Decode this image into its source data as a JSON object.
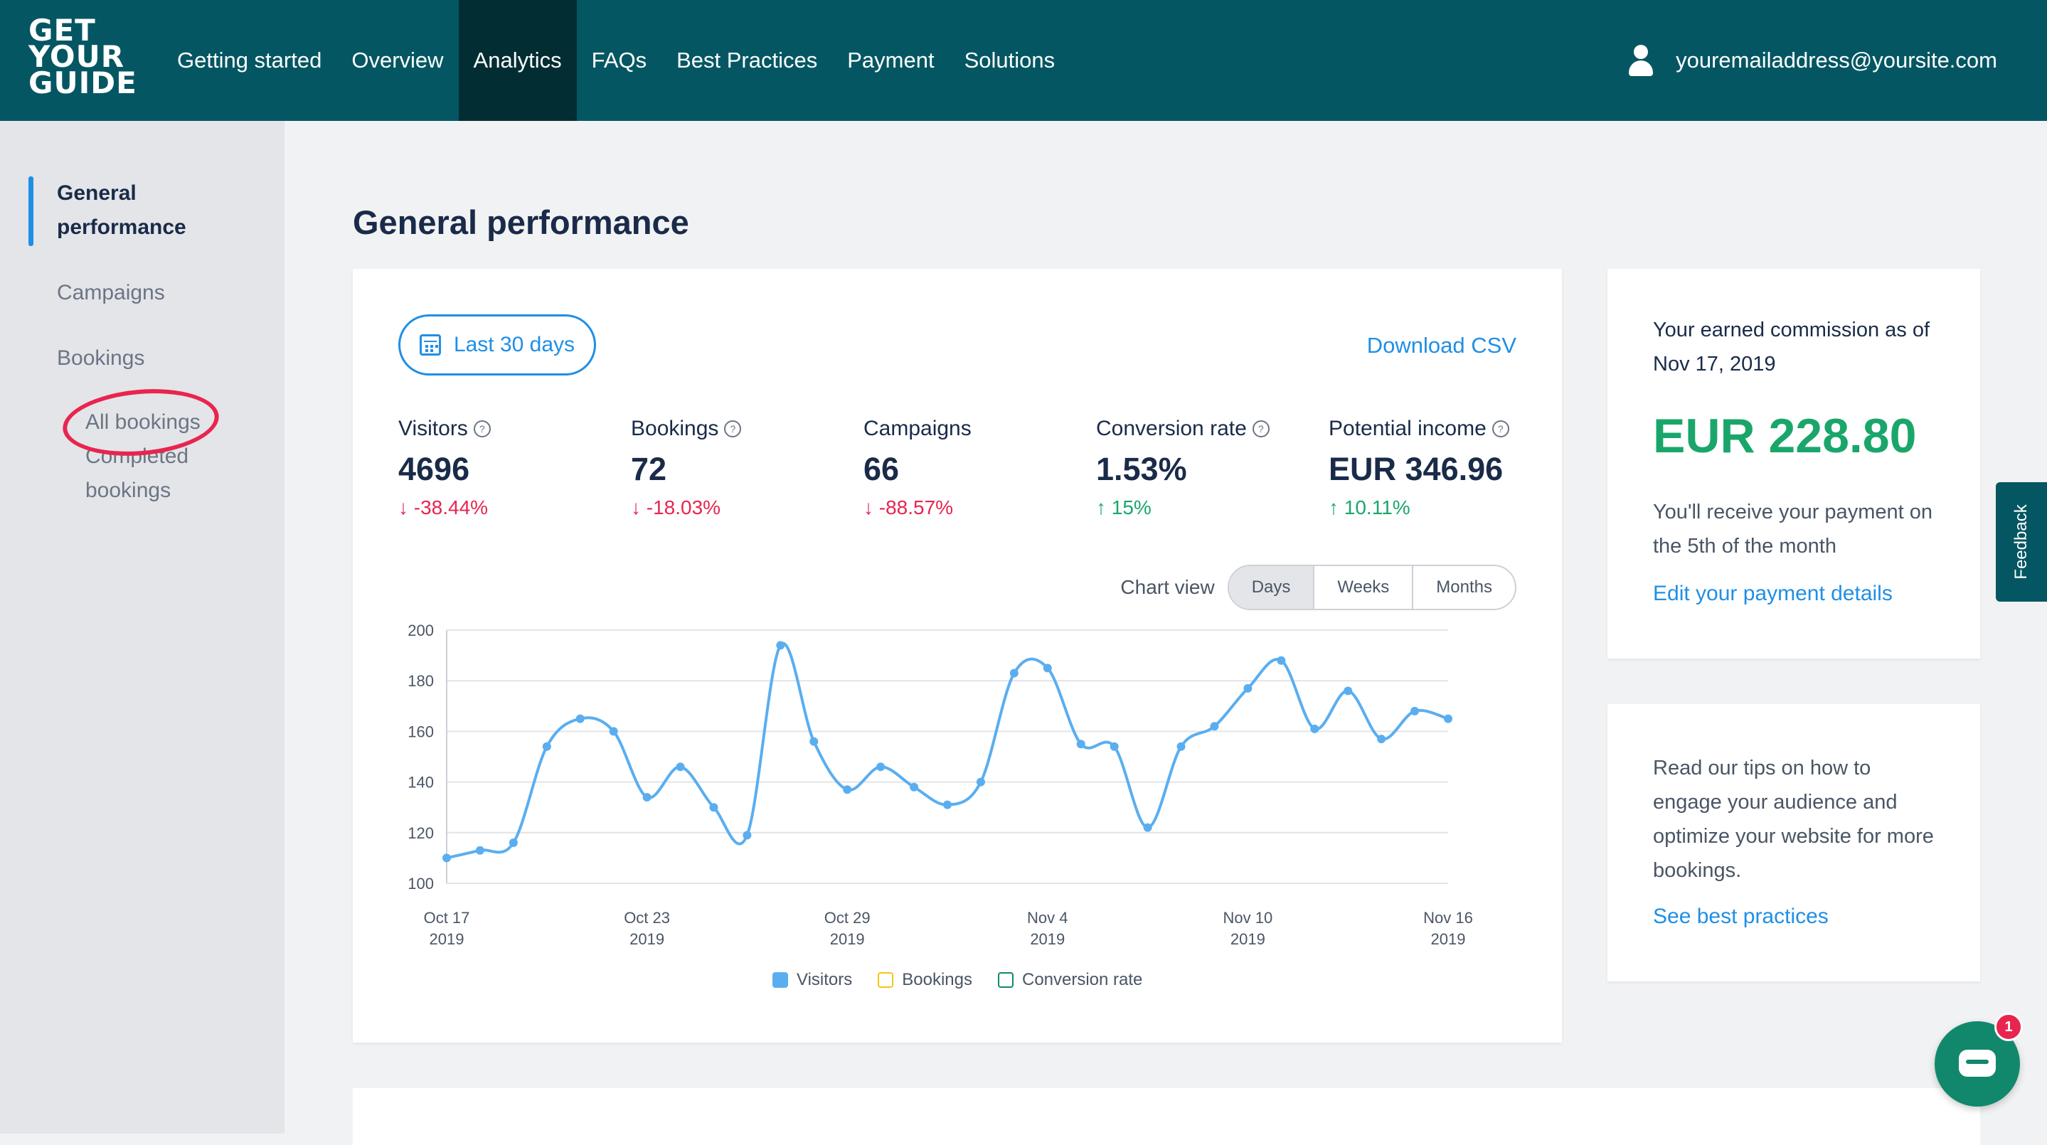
{
  "logo": {
    "lines": [
      "GET",
      "YOUR",
      "GUIDE"
    ]
  },
  "nav": {
    "items": [
      {
        "label": "Getting started"
      },
      {
        "label": "Overview"
      },
      {
        "label": "Analytics"
      },
      {
        "label": "FAQs"
      },
      {
        "label": "Best Practices"
      },
      {
        "label": "Payment"
      },
      {
        "label": "Solutions"
      }
    ],
    "active": "Analytics"
  },
  "user": {
    "email": "youremailaddress@yoursite.com",
    "icon": "user-icon"
  },
  "sidebar": {
    "items": [
      {
        "label": "General performance",
        "active": true
      },
      {
        "label": "Campaigns"
      },
      {
        "label": "Bookings"
      }
    ],
    "sub_items": [
      {
        "label": "All bookings"
      },
      {
        "label": "Completed bookings"
      }
    ],
    "annotation_color": "#e8254f"
  },
  "page": {
    "title": "General performance"
  },
  "toolbar": {
    "date_range": "Last 30 days",
    "date_icon": "calendar-icon",
    "download": "Download CSV"
  },
  "metrics": [
    {
      "label": "Visitors",
      "help": true,
      "value": "4696",
      "change": "-38.44%",
      "direction": "down"
    },
    {
      "label": "Bookings",
      "help": true,
      "value": "72",
      "change": "-18.03%",
      "direction": "down"
    },
    {
      "label": "Campaigns",
      "help": false,
      "value": "66",
      "change": "-88.57%",
      "direction": "down"
    },
    {
      "label": "Conversion rate",
      "help": true,
      "value": "1.53%",
      "change": "15%",
      "direction": "up"
    },
    {
      "label": "Potential income",
      "help": true,
      "value": "EUR 346.96",
      "change": "10.11%",
      "direction": "up"
    }
  ],
  "chart_view": {
    "label": "Chart view",
    "options": [
      "Days",
      "Weeks",
      "Months"
    ],
    "selected": "Days"
  },
  "chart_data": {
    "type": "line",
    "x": [
      "2019-10-17",
      "2019-10-18",
      "2019-10-19",
      "2019-10-20",
      "2019-10-21",
      "2019-10-22",
      "2019-10-23",
      "2019-10-24",
      "2019-10-25",
      "2019-10-26",
      "2019-10-27",
      "2019-10-28",
      "2019-10-29",
      "2019-10-30",
      "2019-10-31",
      "2019-11-01",
      "2019-11-02",
      "2019-11-03",
      "2019-11-04",
      "2019-11-05",
      "2019-11-06",
      "2019-11-07",
      "2019-11-08",
      "2019-11-09",
      "2019-11-10",
      "2019-11-11",
      "2019-11-12",
      "2019-11-13",
      "2019-11-14",
      "2019-11-15",
      "2019-11-16"
    ],
    "series": [
      {
        "name": "Visitors",
        "color": "#5aaef0",
        "values": [
          110,
          113,
          116,
          154,
          165,
          160,
          134,
          146,
          130,
          119,
          194,
          156,
          137,
          146,
          138,
          131,
          140,
          183,
          185,
          155,
          154,
          122,
          154,
          162,
          177,
          188,
          161,
          176,
          157,
          168,
          165
        ]
      }
    ],
    "ylim": [
      100,
      200
    ],
    "yticks": [
      100,
      120,
      140,
      160,
      180,
      200
    ],
    "xticks": [
      {
        "line1": "Oct 17",
        "line2": "2019"
      },
      {
        "line1": "Oct 23",
        "line2": "2019"
      },
      {
        "line1": "Oct 29",
        "line2": "2019"
      },
      {
        "line1": "Nov 4",
        "line2": "2019"
      },
      {
        "line1": "Nov 10",
        "line2": "2019"
      },
      {
        "line1": "Nov 16",
        "line2": "2019"
      }
    ],
    "xtick_index": [
      0,
      6,
      12,
      18,
      24,
      30
    ],
    "legend": [
      {
        "label": "Visitors",
        "color": "#5aaef0",
        "filled": true
      },
      {
        "label": "Bookings",
        "color": "#f5c518",
        "filled": false
      },
      {
        "label": "Conversion rate",
        "color": "#11886c",
        "filled": false
      }
    ],
    "grid": true
  },
  "commission": {
    "heading": "Your earned commission as of Nov 17, 2019",
    "amount": "EUR 228.80",
    "note": "You'll receive your payment on the 5th of the month",
    "link": "Edit your payment details"
  },
  "tips": {
    "text": "Read our tips on how to engage your audience and optimize your website for more bookings.",
    "link": "See best practices"
  },
  "feedback": {
    "label": "Feedback"
  },
  "chat": {
    "badge": "1",
    "icon": "chat-icon"
  }
}
